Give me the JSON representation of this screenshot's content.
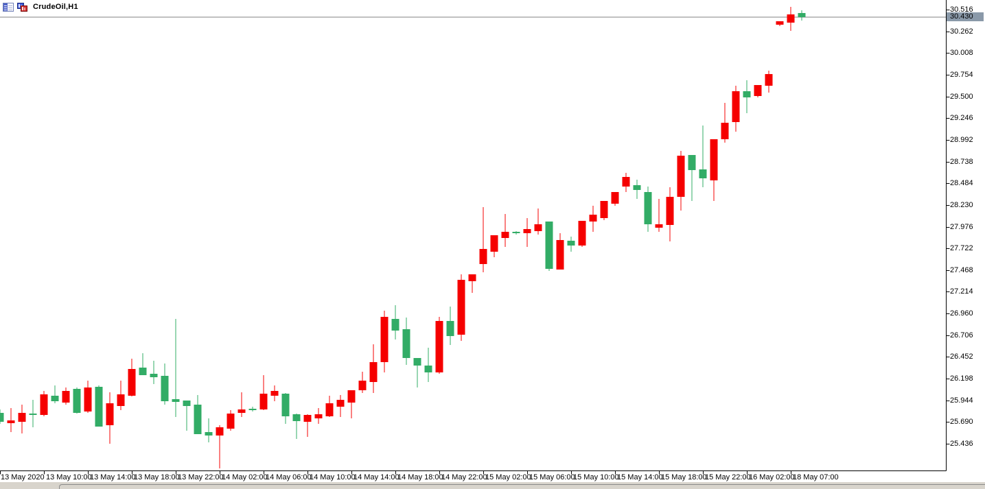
{
  "header": {
    "symbol_label": "CrudeOil,H1",
    "icons": [
      "market-watch-icon",
      "charts-icon"
    ]
  },
  "price_axis": {
    "labels": [
      "30.516",
      "30.262",
      "30.008",
      "29.754",
      "29.500",
      "29.246",
      "28.992",
      "28.738",
      "28.484",
      "28.230",
      "27.976",
      "27.722",
      "27.468",
      "27.214",
      "26.960",
      "26.706",
      "26.452",
      "26.198",
      "25.944",
      "25.690",
      "25.436"
    ],
    "current_price_label": "30.430",
    "badge_color": "#8A99A9"
  },
  "time_axis": {
    "labels": [
      "13 May 2020",
      "13 May 10:00",
      "13 May 14:00",
      "13 May 18:00",
      "13 May 22:00",
      "14 May 02:00",
      "14 May 06:00",
      "14 May 10:00",
      "14 May 14:00",
      "14 May 18:00",
      "14 May 22:00",
      "15 May 02:00",
      "15 May 06:00",
      "15 May 10:00",
      "15 May 14:00",
      "15 May 18:00",
      "15 May 22:00",
      "16 May 02:00",
      "18 May 07:00"
    ]
  },
  "chart_data": {
    "type": "candlestick",
    "title": "CrudeOil,H1",
    "symbol": "CrudeOil",
    "timeframe": "H1",
    "legend_position": "none",
    "grid": false,
    "bull_color": "#F50000",
    "bear_color": "#32AC66",
    "price_line_color": "#808080",
    "current_price": 30.43,
    "axis": {
      "top_price": 30.516,
      "tick_step": 0.254,
      "bottom_label": 25.436,
      "ylim": [
        25.123,
        30.63
      ]
    },
    "x_start_label": "13 May 2020 06:00",
    "interval_hours": 1,
    "ohlc": [
      [
        25.797,
        25.837,
        25.669,
        25.693
      ],
      [
        25.677,
        25.853,
        25.572,
        25.709
      ],
      [
        25.693,
        25.893,
        25.556,
        25.797
      ],
      [
        25.789,
        25.95,
        25.629,
        25.773
      ],
      [
        25.773,
        26.054,
        25.757,
        26.014
      ],
      [
        25.998,
        26.118,
        25.909,
        25.934
      ],
      [
        25.918,
        26.094,
        25.893,
        26.054
      ],
      [
        26.078,
        26.094,
        25.789,
        25.797
      ],
      [
        25.813,
        26.174,
        25.797,
        26.094
      ],
      [
        26.102,
        26.118,
        25.637,
        25.637
      ],
      [
        25.653,
        26.038,
        25.436,
        25.909
      ],
      [
        25.877,
        26.174,
        25.829,
        26.014
      ],
      [
        25.998,
        26.431,
        25.99,
        26.311
      ],
      [
        26.327,
        26.495,
        26.239,
        26.239
      ],
      [
        26.255,
        26.407,
        26.134,
        26.214
      ],
      [
        26.231,
        26.375,
        25.893,
        25.934
      ],
      [
        25.958,
        26.897,
        25.749,
        25.926
      ],
      [
        25.942,
        25.942,
        25.588,
        25.877
      ],
      [
        25.893,
        26.006,
        25.548,
        25.548
      ],
      [
        25.572,
        25.733,
        25.452,
        25.532
      ],
      [
        25.532,
        25.653,
        25.147,
        25.629
      ],
      [
        25.613,
        25.829,
        25.588,
        25.789
      ],
      [
        25.797,
        26.038,
        25.749,
        25.837
      ],
      [
        25.845,
        25.869,
        25.813,
        25.829
      ],
      [
        25.837,
        26.239,
        25.829,
        26.022
      ],
      [
        25.998,
        26.118,
        25.934,
        26.054
      ],
      [
        26.022,
        26.03,
        25.669,
        25.757
      ],
      [
        25.781,
        25.789,
        25.492,
        25.701
      ],
      [
        25.693,
        25.781,
        25.516,
        25.773
      ],
      [
        25.733,
        25.853,
        25.669,
        25.781
      ],
      [
        25.757,
        25.998,
        25.749,
        25.909
      ],
      [
        25.869,
        26.006,
        25.749,
        25.95
      ],
      [
        25.918,
        26.062,
        25.733,
        26.062
      ],
      [
        26.062,
        26.279,
        26.03,
        26.174
      ],
      [
        26.158,
        26.6,
        26.03,
        26.391
      ],
      [
        26.391,
        26.993,
        26.271,
        26.921
      ],
      [
        26.897,
        27.057,
        26.656,
        26.76
      ],
      [
        26.776,
        26.913,
        26.359,
        26.439
      ],
      [
        26.439,
        26.439,
        26.094,
        26.351
      ],
      [
        26.351,
        26.56,
        26.158,
        26.271
      ],
      [
        26.271,
        26.921,
        26.255,
        26.873
      ],
      [
        26.873,
        27.041,
        26.592,
        26.696
      ],
      [
        26.712,
        27.418,
        26.64,
        27.354
      ],
      [
        27.338,
        27.418,
        27.202,
        27.418
      ],
      [
        27.539,
        28.205,
        27.442,
        27.715
      ],
      [
        27.683,
        27.876,
        27.619,
        27.876
      ],
      [
        27.844,
        28.124,
        27.739,
        27.916
      ],
      [
        27.916,
        27.924,
        27.884,
        27.9
      ],
      [
        27.9,
        28.076,
        27.739,
        27.948
      ],
      [
        27.924,
        28.189,
        27.884,
        28.004
      ],
      [
        28.036,
        28.036,
        27.458,
        27.482
      ],
      [
        27.474,
        27.9,
        27.474,
        27.819
      ],
      [
        27.812,
        27.86,
        27.683,
        27.755
      ],
      [
        27.755,
        28.044,
        27.739,
        28.044
      ],
      [
        28.036,
        28.221,
        27.916,
        28.116
      ],
      [
        28.076,
        28.277,
        28.052,
        28.277
      ],
      [
        28.245,
        28.381,
        28.221,
        28.381
      ],
      [
        28.446,
        28.606,
        28.381,
        28.558
      ],
      [
        28.462,
        28.526,
        28.301,
        28.405
      ],
      [
        28.381,
        28.446,
        27.916,
        28.004
      ],
      [
        27.964,
        28.301,
        27.916,
        28.004
      ],
      [
        27.996,
        28.437,
        27.804,
        28.325
      ],
      [
        28.325,
        28.863,
        28.165,
        28.807
      ],
      [
        28.815,
        28.815,
        28.277,
        28.638
      ],
      [
        28.646,
        29.16,
        28.437,
        28.542
      ],
      [
        28.518,
        28.999,
        28.277,
        28.999
      ],
      [
        28.999,
        29.425,
        28.959,
        29.192
      ],
      [
        29.2,
        29.625,
        29.088,
        29.561
      ],
      [
        29.561,
        29.689,
        29.304,
        29.489
      ],
      [
        29.505,
        29.633,
        29.489,
        29.633
      ],
      [
        29.625,
        29.802,
        29.545,
        29.762
      ],
      [
        30.34,
        30.38,
        30.323,
        30.38
      ],
      [
        30.364,
        30.548,
        30.267,
        30.46
      ],
      [
        30.476,
        30.508,
        30.388,
        30.428
      ]
    ]
  }
}
